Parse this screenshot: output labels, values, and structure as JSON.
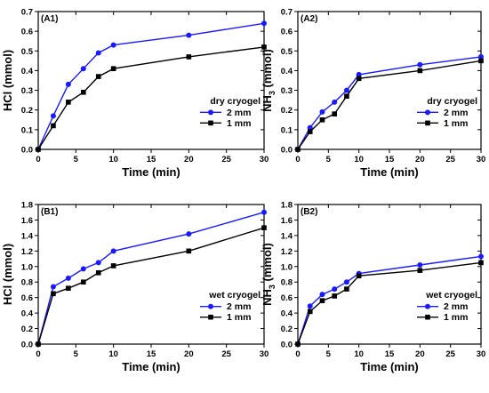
{
  "chart_data": [
    {
      "type": "line",
      "panel_label": "(A1)",
      "xlabel": "Time (min)",
      "ylabel": "HCl (mmol)",
      "ylabel_sub": "",
      "xlim": [
        0,
        30
      ],
      "ylim": [
        0,
        0.7
      ],
      "x_ticks": [
        0,
        5,
        10,
        15,
        20,
        25,
        30
      ],
      "y_ticks": [
        "0.0",
        "0.1",
        "0.2",
        "0.3",
        "0.4",
        "0.5",
        "0.6",
        "0.7"
      ],
      "legend_title": "dry cryogel",
      "legend_position": "right",
      "grid": false,
      "x": [
        0,
        2,
        4,
        6,
        8,
        10,
        20,
        30
      ],
      "series": [
        {
          "name": "2 mm",
          "color": "#1a1aff",
          "marker": "circle",
          "values": [
            0.0,
            0.17,
            0.33,
            0.41,
            0.49,
            0.53,
            0.58,
            0.64
          ]
        },
        {
          "name": "1 mm",
          "color": "#000000",
          "marker": "square",
          "values": [
            0.0,
            0.12,
            0.24,
            0.29,
            0.37,
            0.41,
            0.47,
            0.52
          ]
        }
      ]
    },
    {
      "type": "line",
      "panel_label": "(A2)",
      "xlabel": "Time (min)",
      "ylabel": "NH",
      "ylabel_sub": "3",
      "ylabel_tail": " (mmol)",
      "xlim": [
        0,
        30
      ],
      "ylim": [
        0,
        0.7
      ],
      "x_ticks": [
        0,
        5,
        10,
        15,
        20,
        25,
        30
      ],
      "y_ticks": [
        "0.0",
        "0.1",
        "0.2",
        "0.3",
        "0.4",
        "0.5",
        "0.6",
        "0.7"
      ],
      "legend_title": "dry cryogel",
      "legend_position": "right",
      "grid": false,
      "x": [
        0,
        2,
        4,
        6,
        8,
        10,
        20,
        30
      ],
      "series": [
        {
          "name": "2 mm",
          "color": "#1a1aff",
          "marker": "circle",
          "values": [
            0.0,
            0.11,
            0.19,
            0.24,
            0.3,
            0.38,
            0.43,
            0.47
          ]
        },
        {
          "name": "1 mm",
          "color": "#000000",
          "marker": "square",
          "values": [
            0.0,
            0.09,
            0.15,
            0.18,
            0.27,
            0.36,
            0.4,
            0.45
          ]
        }
      ]
    },
    {
      "type": "line",
      "panel_label": "(B1)",
      "xlabel": "Time (min)",
      "ylabel": "HCl (mmol)",
      "ylabel_sub": "",
      "xlim": [
        0,
        30
      ],
      "ylim": [
        0,
        1.8
      ],
      "x_ticks": [
        0,
        5,
        10,
        15,
        20,
        25,
        30
      ],
      "y_ticks": [
        "0.0",
        "0.2",
        "0.4",
        "0.6",
        "0.8",
        "1.0",
        "1.2",
        "1.4",
        "1.6",
        "1.8"
      ],
      "legend_title": "wet cryogel",
      "legend_position": "right",
      "grid": false,
      "x": [
        0,
        2,
        4,
        6,
        8,
        10,
        20,
        30
      ],
      "series": [
        {
          "name": "2 mm",
          "color": "#1a1aff",
          "marker": "circle",
          "values": [
            0.0,
            0.74,
            0.85,
            0.97,
            1.05,
            1.2,
            1.42,
            1.7
          ]
        },
        {
          "name": "1 mm",
          "color": "#000000",
          "marker": "square",
          "values": [
            0.0,
            0.65,
            0.72,
            0.8,
            0.92,
            1.01,
            1.2,
            1.5
          ]
        }
      ]
    },
    {
      "type": "line",
      "panel_label": "(B2)",
      "xlabel": "Time (min)",
      "ylabel": "NH",
      "ylabel_sub": "3",
      "ylabel_tail": " (mmol)",
      "xlim": [
        0,
        30
      ],
      "ylim": [
        0,
        1.8
      ],
      "x_ticks": [
        0,
        5,
        10,
        15,
        20,
        25,
        30
      ],
      "y_ticks": [
        "0.0",
        "0.2",
        "0.4",
        "0.6",
        "0.8",
        "1.0",
        "1.2",
        "1.4",
        "1.6",
        "1.8"
      ],
      "legend_title": "wet cryogel",
      "legend_position": "right",
      "grid": false,
      "x": [
        0,
        2,
        4,
        6,
        8,
        10,
        20,
        30
      ],
      "series": [
        {
          "name": "2 mm",
          "color": "#1a1aff",
          "marker": "circle",
          "values": [
            0.0,
            0.49,
            0.64,
            0.71,
            0.8,
            0.91,
            1.02,
            1.13
          ]
        },
        {
          "name": "1 mm",
          "color": "#000000",
          "marker": "square",
          "values": [
            0.0,
            0.42,
            0.56,
            0.62,
            0.71,
            0.88,
            0.95,
            1.05
          ]
        }
      ]
    }
  ]
}
